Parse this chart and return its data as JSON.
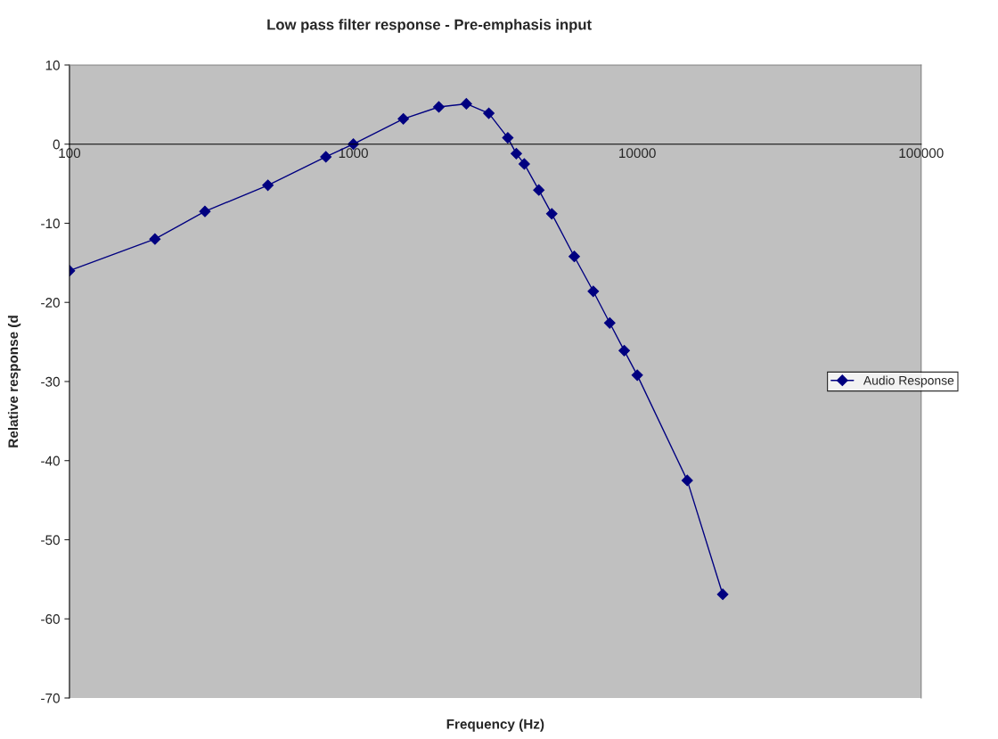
{
  "chart_data": {
    "type": "line",
    "title": "Low pass filter response - Pre-emphasis input",
    "xlabel": "Frequency (Hz)",
    "ylabel": "Relative response (d",
    "log": "x",
    "xlim": [
      100,
      100000
    ],
    "xticks": [
      100,
      1000,
      10000,
      100000
    ],
    "ylim": [
      -70,
      10
    ],
    "yticks": [
      -70,
      -60,
      -50,
      -40,
      -30,
      -20,
      -10,
      0,
      10
    ],
    "grid": false,
    "legend": "right",
    "marker": "diamond",
    "line_style": "solid",
    "x": [
      100,
      200,
      300,
      500,
      800,
      1000,
      1500,
      2000,
      2500,
      3000,
      3500,
      3750,
      4000,
      4500,
      5000,
      6000,
      7000,
      8000,
      9000,
      10000,
      15000,
      20000
    ],
    "series": [
      {
        "name": "Audio Response",
        "color": "#000080",
        "values": [
          -16,
          -12,
          -8.5,
          -5.2,
          -1.6,
          0,
          3.2,
          4.7,
          5.1,
          3.9,
          0.8,
          -1.2,
          -2.5,
          -5.8,
          -8.8,
          -14.2,
          -18.6,
          -22.6,
          -26.1,
          -29.2,
          -42.5,
          -56.9
        ]
      }
    ]
  }
}
